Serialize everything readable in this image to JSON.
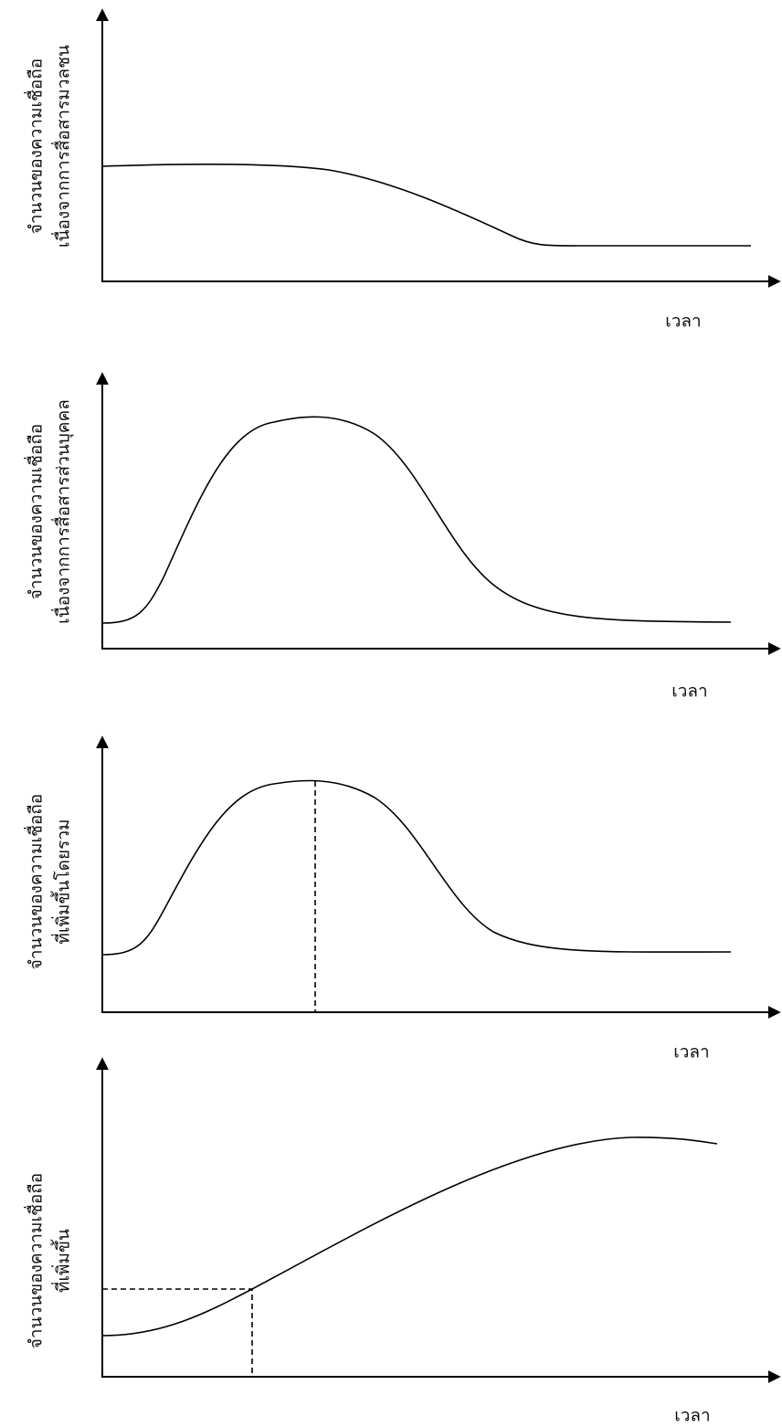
{
  "panels": [
    {
      "y_label": [
        "จำนวนของความเชื่อถือ",
        "เนื่องจากการสื่อสารมวลชน"
      ],
      "x_label": "เวลา"
    },
    {
      "y_label": [
        "จำนวนของความเชื่อถือ",
        "เนื่องจากการสื่อสารส่วนบุคคล"
      ],
      "x_label": "เวลา"
    },
    {
      "y_label": [
        "จำนวนของความเชื่อถือ",
        "ที่เพิ่มขึ้นโดยรวม"
      ],
      "x_label": "เวลา"
    },
    {
      "y_label": [
        "จำนวนของความเชื่อถือ",
        "ที่เพิ่มขึ้น"
      ],
      "x_label": "เวลา"
    }
  ]
}
